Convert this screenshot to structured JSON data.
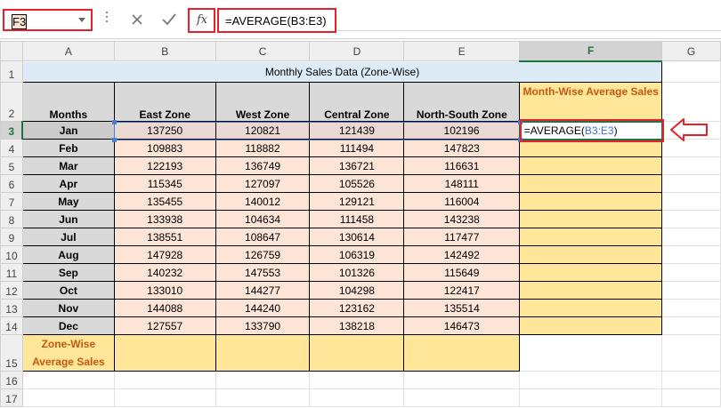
{
  "name_box": {
    "value": "F3"
  },
  "formula_bar": {
    "fx_label": "fx",
    "formula": "=AVERAGE(B3:E3)"
  },
  "columns": [
    "A",
    "B",
    "C",
    "D",
    "E",
    "F",
    "G"
  ],
  "row_numbers": [
    "1",
    "2",
    "3",
    "4",
    "5",
    "6",
    "7",
    "8",
    "9",
    "10",
    "11",
    "12",
    "13",
    "14",
    "15",
    "16",
    "17"
  ],
  "sheet": {
    "title": "Monthly Sales Data (Zone-Wise)",
    "headers": [
      "Months",
      "East Zone",
      "West Zone",
      "Central Zone",
      "North-South Zone"
    ],
    "avg_header": "Month-Wise Average Sales",
    "rows": [
      [
        "Jan",
        "137250",
        "120821",
        "121439",
        "102196"
      ],
      [
        "Feb",
        "109883",
        "118882",
        "111494",
        "147823"
      ],
      [
        "Mar",
        "122193",
        "136749",
        "136721",
        "116631"
      ],
      [
        "Apr",
        "115345",
        "127097",
        "105526",
        "148111"
      ],
      [
        "May",
        "135455",
        "140012",
        "129121",
        "116004"
      ],
      [
        "Jun",
        "133938",
        "104634",
        "111458",
        "143238"
      ],
      [
        "Jul",
        "138551",
        "108647",
        "130614",
        "117477"
      ],
      [
        "Aug",
        "147928",
        "126759",
        "106319",
        "142492"
      ],
      [
        "Sep",
        "140232",
        "147553",
        "101326",
        "115649"
      ],
      [
        "Oct",
        "133010",
        "144277",
        "104298",
        "122417"
      ],
      [
        "Nov",
        "144088",
        "144240",
        "123162",
        "135514"
      ],
      [
        "Dec",
        "127557",
        "133790",
        "138218",
        "146473"
      ]
    ],
    "zone_avg_label": "Zone-Wise Average Sales",
    "editing": {
      "prefix": "=AVERAGE(",
      "ref": "B3:E3",
      "suffix": ")"
    }
  },
  "colors": {
    "accent_red": "#e8202a",
    "excel_green": "#217346",
    "ref_blue": "#3a6fd8"
  }
}
